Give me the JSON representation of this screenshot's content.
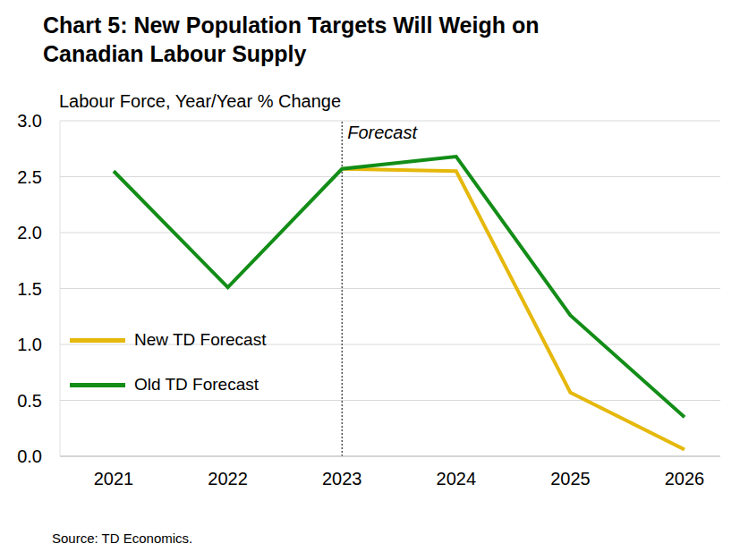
{
  "chart_data": {
    "type": "line",
    "title": "Chart 5: New Population Targets Will Weigh on Canadian Labour Supply",
    "y_label": "Labour Force, Year/Year % Change",
    "source": "Source: TD Economics.",
    "categories": [
      "2021",
      "2022",
      "2023",
      "2024",
      "2025",
      "2026"
    ],
    "series": [
      {
        "name": "New TD Forecast",
        "color": "#E5B80B",
        "values": [
          null,
          null,
          2.57,
          2.55,
          0.57,
          0.06
        ]
      },
      {
        "name": "Old TD Forecast",
        "color": "#138D18",
        "values": [
          2.55,
          1.51,
          2.57,
          2.68,
          1.26,
          0.35
        ]
      }
    ],
    "ylim": [
      0,
      3
    ],
    "yticks": [
      {
        "value": 0,
        "label": "0.0"
      },
      0.5,
      {
        "value": 1,
        "label": "1.0"
      },
      1.5,
      {
        "value": 2,
        "label": "2.0"
      },
      2.5,
      {
        "value": 3,
        "label": "3.0"
      }
    ],
    "annotations": [
      {
        "x": "2023",
        "text": "Forecast"
      }
    ],
    "grid": true,
    "legend": "left"
  }
}
